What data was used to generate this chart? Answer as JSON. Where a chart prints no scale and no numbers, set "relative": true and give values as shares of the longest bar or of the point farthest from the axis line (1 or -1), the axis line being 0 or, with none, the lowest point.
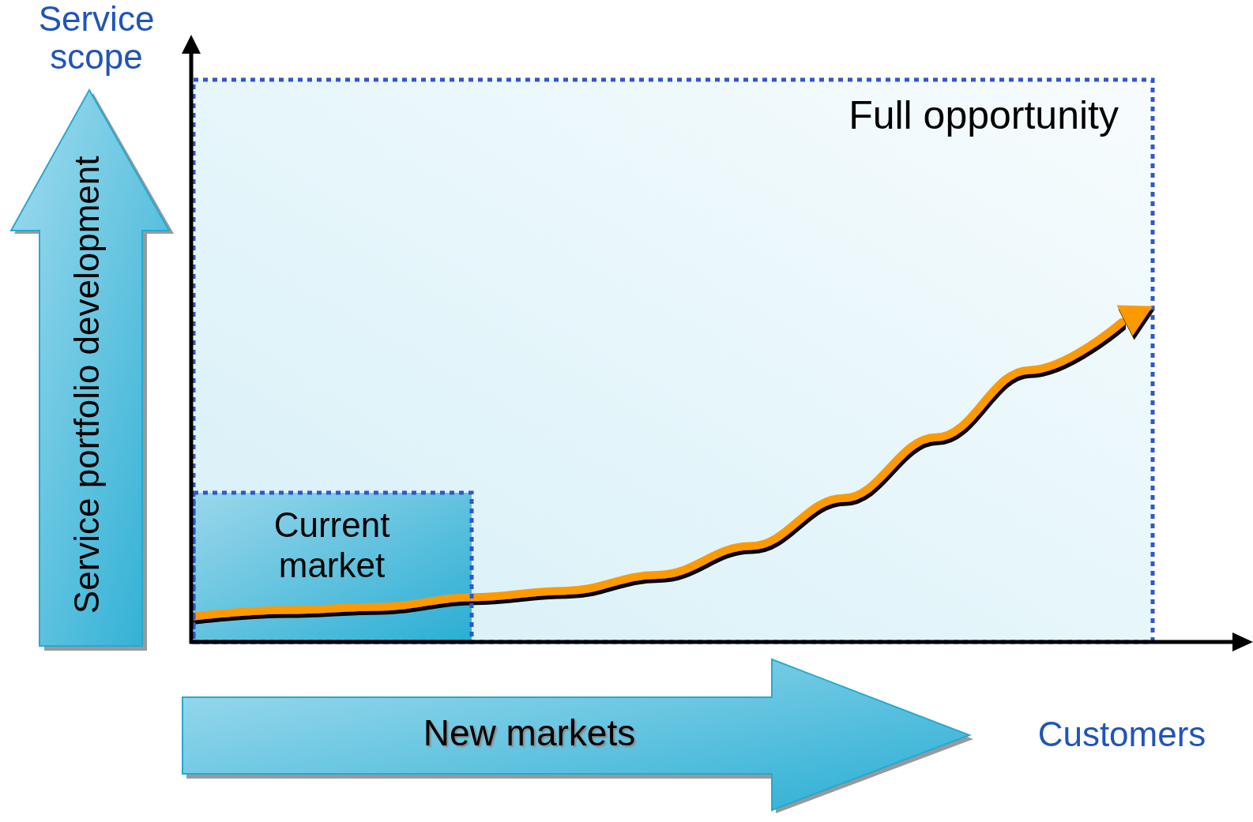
{
  "chart_data": {
    "type": "line",
    "relative": true,
    "categories": [
      null,
      null,
      null,
      null,
      null,
      null,
      null,
      null,
      null,
      null,
      null
    ],
    "series": [
      {
        "color": "#ff9900",
        "values": [
          0.08,
          0.1,
          0.11,
          0.14,
          0.16,
          0.21,
          0.3,
          0.45,
          0.64,
          0.85,
          1
        ]
      }
    ],
    "xlabel": "Customers",
    "annotations": [
      "Service scope",
      "Full opportunity",
      "Current market",
      "Service portfolio development",
      "New markets"
    ]
  }
}
